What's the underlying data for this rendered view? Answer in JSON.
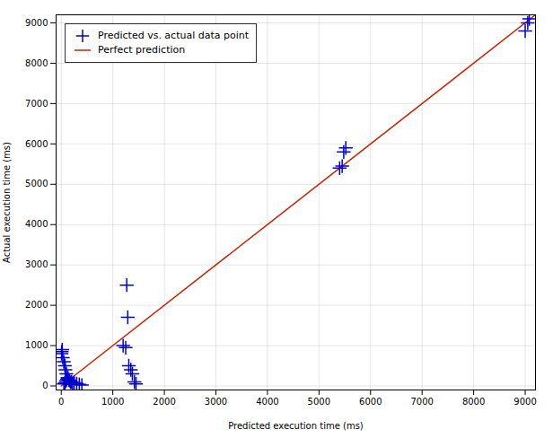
{
  "chart_data": {
    "type": "scatter",
    "xlabel": "Predicted execution time (ms)",
    "ylabel": "Actual execution time (ms)",
    "xlim": [
      -100,
      9200
    ],
    "ylim": [
      -100,
      9200
    ],
    "xticks": [
      0,
      1000,
      2000,
      3000,
      4000,
      5000,
      6000,
      7000,
      8000,
      9000
    ],
    "yticks": [
      0,
      1000,
      2000,
      3000,
      4000,
      5000,
      6000,
      7000,
      8000,
      9000
    ],
    "grid": true,
    "legend": "upper left",
    "series": [
      {
        "name": "Predicted vs. actual data point",
        "type": "scatter",
        "color": "#0000cc",
        "marker": "plus",
        "x": [
          5,
          10,
          20,
          30,
          50,
          70,
          80,
          100,
          120,
          150,
          200,
          250,
          300,
          350,
          400,
          50,
          70,
          90,
          110,
          130,
          160,
          180,
          220,
          1200,
          1250,
          1270,
          1290,
          1310,
          1350,
          1380,
          1420,
          1450,
          5400,
          5450,
          5480,
          5520,
          9000,
          9050,
          9080
        ],
        "values": [
          800,
          850,
          900,
          700,
          600,
          500,
          400,
          300,
          200,
          150,
          100,
          80,
          60,
          40,
          20,
          50,
          80,
          120,
          160,
          200,
          130,
          90,
          50,
          1000,
          950,
          2500,
          1700,
          500,
          400,
          300,
          100,
          50,
          5400,
          5450,
          5800,
          5900,
          8800,
          9000,
          9100
        ]
      },
      {
        "name": "Perfect prediction",
        "type": "line",
        "color": "#cc2200",
        "line_style": "solid",
        "x": [
          0,
          9200
        ],
        "values": [
          0,
          9200
        ]
      }
    ]
  }
}
